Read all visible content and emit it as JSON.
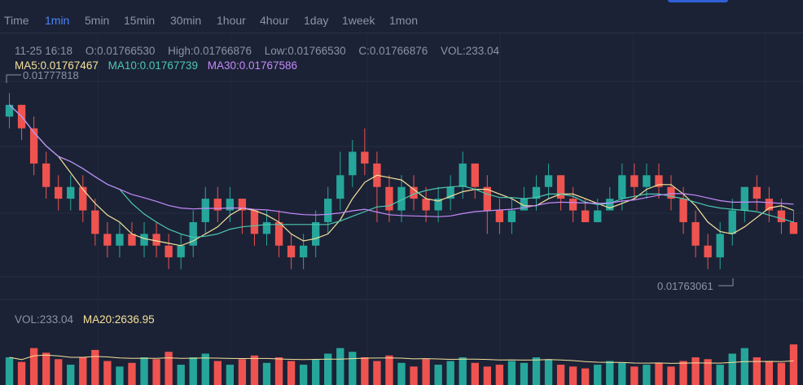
{
  "tabs": [
    {
      "label": "Time",
      "active": false
    },
    {
      "label": "1min",
      "active": true
    },
    {
      "label": "5min",
      "active": false
    },
    {
      "label": "15min",
      "active": false
    },
    {
      "label": "30min",
      "active": false
    },
    {
      "label": "1hour",
      "active": false
    },
    {
      "label": "4hour",
      "active": false
    },
    {
      "label": "1day",
      "active": false
    },
    {
      "label": "1week",
      "active": false
    },
    {
      "label": "1mon",
      "active": false
    }
  ],
  "ohlc": {
    "time": "11-25 16:18",
    "open": "O:0.01766530",
    "high": "High:0.01766876",
    "low": "Low:0.01766530",
    "close": "C:0.01766876",
    "volume": "VOL:233.04"
  },
  "ma": {
    "ma5": "MA5:0.01767467",
    "ma10": "MA10:0.01767739",
    "ma30": "MA30:0.01767586"
  },
  "volume_panel": {
    "vol": "VOL:233.04",
    "ma20": "MA20:2636.95"
  },
  "annotations": {
    "max_price": "0.01777818",
    "min_price": "0.01763061"
  },
  "colors": {
    "up": "#26a69a",
    "down": "#ef5350",
    "ma5": "#f5e19a",
    "ma10": "#4cc9b0",
    "ma30": "#c58af9",
    "ma20": "#f5e19a",
    "accent": "#4c84f5",
    "background": "#1b2236"
  },
  "chart_data": {
    "type": "candlestick",
    "price_range": [
      0.01762,
      0.01779
    ],
    "candles": [
      [
        0.01776,
        0.01777,
        0.01778,
        0.01775
      ],
      [
        0.01777,
        0.01775,
        0.01777,
        0.01774
      ],
      [
        0.01775,
        0.01772,
        0.01776,
        0.01771
      ],
      [
        0.01772,
        0.0177,
        0.01773,
        0.01769
      ],
      [
        0.0177,
        0.01769,
        0.01771,
        0.01768
      ],
      [
        0.01769,
        0.0177,
        0.01771,
        0.01768
      ],
      [
        0.0177,
        0.01768,
        0.01771,
        0.01767
      ],
      [
        0.01768,
        0.01766,
        0.01769,
        0.01765
      ],
      [
        0.01766,
        0.01765,
        0.01767,
        0.01764
      ],
      [
        0.01765,
        0.01766,
        0.01767,
        0.01764
      ],
      [
        0.01766,
        0.01765,
        0.01767,
        0.01765
      ],
      [
        0.01765,
        0.01766,
        0.01767,
        0.01764
      ],
      [
        0.01766,
        0.01765,
        0.01767,
        0.01764
      ],
      [
        0.01765,
        0.01764,
        0.01766,
        0.01763
      ],
      [
        0.01764,
        0.01765,
        0.01766,
        0.01763
      ],
      [
        0.01765,
        0.01767,
        0.01768,
        0.01764
      ],
      [
        0.01767,
        0.01769,
        0.0177,
        0.01766
      ],
      [
        0.01769,
        0.01768,
        0.0177,
        0.01767
      ],
      [
        0.01768,
        0.01769,
        0.0177,
        0.01767
      ],
      [
        0.01769,
        0.01768,
        0.01769,
        0.01766
      ],
      [
        0.01768,
        0.01766,
        0.01768,
        0.01765
      ],
      [
        0.01766,
        0.01767,
        0.01768,
        0.01765
      ],
      [
        0.01767,
        0.01765,
        0.01768,
        0.01764
      ],
      [
        0.01765,
        0.01764,
        0.01766,
        0.01763
      ],
      [
        0.01764,
        0.01765,
        0.01766,
        0.01763
      ],
      [
        0.01765,
        0.01767,
        0.01768,
        0.01764
      ],
      [
        0.01767,
        0.01769,
        0.0177,
        0.01766
      ],
      [
        0.01769,
        0.01771,
        0.01773,
        0.01768
      ],
      [
        0.01771,
        0.01773,
        0.01774,
        0.0177
      ],
      [
        0.01773,
        0.01772,
        0.01775,
        0.01771
      ],
      [
        0.01772,
        0.0177,
        0.01773,
        0.01767
      ],
      [
        0.0177,
        0.01768,
        0.01771,
        0.01767
      ],
      [
        0.01768,
        0.0177,
        0.01771,
        0.01767
      ],
      [
        0.0177,
        0.01769,
        0.01771,
        0.01768
      ],
      [
        0.01769,
        0.01768,
        0.0177,
        0.01767
      ],
      [
        0.01768,
        0.01769,
        0.0177,
        0.01767
      ],
      [
        0.01769,
        0.0177,
        0.01771,
        0.01768
      ],
      [
        0.0177,
        0.01772,
        0.01773,
        0.01769
      ],
      [
        0.01772,
        0.0177,
        0.01772,
        0.01769
      ],
      [
        0.0177,
        0.01768,
        0.01771,
        0.01766
      ],
      [
        0.01768,
        0.01767,
        0.01769,
        0.01766
      ],
      [
        0.01767,
        0.01768,
        0.01769,
        0.01766
      ],
      [
        0.01768,
        0.01769,
        0.0177,
        0.01768
      ],
      [
        0.01769,
        0.0177,
        0.01771,
        0.01768
      ],
      [
        0.0177,
        0.01771,
        0.01772,
        0.01769
      ],
      [
        0.01771,
        0.01769,
        0.01771,
        0.01768
      ],
      [
        0.01769,
        0.01768,
        0.0177,
        0.01767
      ],
      [
        0.01768,
        0.01767,
        0.01769,
        0.01767
      ],
      [
        0.01767,
        0.01768,
        0.01769,
        0.01767
      ],
      [
        0.01768,
        0.01769,
        0.0177,
        0.01768
      ],
      [
        0.01769,
        0.01771,
        0.01772,
        0.01768
      ],
      [
        0.01771,
        0.0177,
        0.01772,
        0.01769
      ],
      [
        0.0177,
        0.01771,
        0.01772,
        0.01769
      ],
      [
        0.01771,
        0.0177,
        0.01772,
        0.01769
      ],
      [
        0.0177,
        0.01769,
        0.01771,
        0.01768
      ],
      [
        0.01769,
        0.01767,
        0.0177,
        0.01766
      ],
      [
        0.01767,
        0.01765,
        0.01768,
        0.01764
      ],
      [
        0.01765,
        0.01764,
        0.01766,
        0.01763
      ],
      [
        0.01764,
        0.01766,
        0.01767,
        0.01763
      ],
      [
        0.01766,
        0.01768,
        0.01769,
        0.01765
      ],
      [
        0.01768,
        0.0177,
        0.0177,
        0.01767
      ],
      [
        0.0177,
        0.01769,
        0.01771,
        0.01768
      ],
      [
        0.01769,
        0.01768,
        0.0177,
        0.01767
      ],
      [
        0.01768,
        0.01767,
        0.01769,
        0.01766
      ],
      [
        0.01767,
        0.01766,
        0.01768,
        0.01766
      ]
    ],
    "volumes": [
      30,
      25,
      40,
      35,
      28,
      22,
      30,
      38,
      26,
      20,
      24,
      30,
      28,
      36,
      22,
      30,
      34,
      26,
      22,
      28,
      32,
      24,
      30,
      26,
      22,
      28,
      34,
      40,
      36,
      30,
      26,
      32,
      24,
      20,
      28,
      22,
      26,
      30,
      24,
      20,
      22,
      26,
      24,
      30,
      28,
      22,
      20,
      18,
      22,
      26,
      24,
      20,
      22,
      24,
      20,
      26,
      30,
      28,
      22,
      34,
      40,
      30,
      26,
      24,
      44
    ],
    "vol_ylim": [
      0,
      60
    ]
  }
}
